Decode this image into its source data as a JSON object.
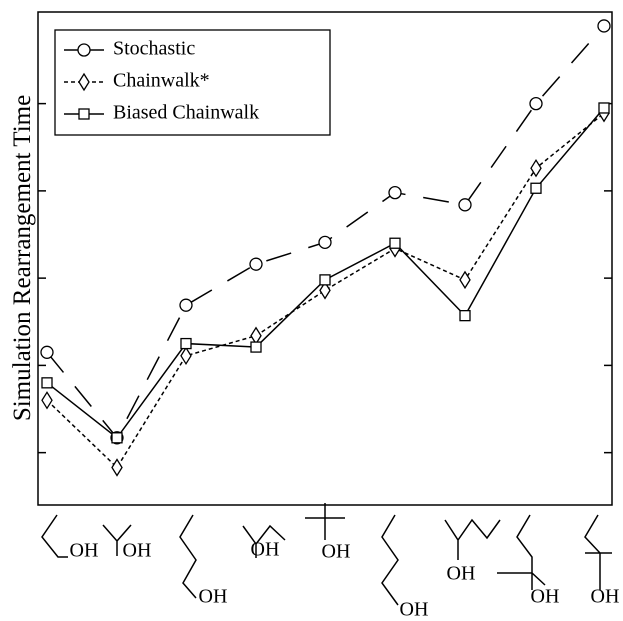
{
  "chart_data": {
    "type": "line",
    "y_label": "Simulation Rearrangement Time",
    "categories": [
      "OH",
      "OH",
      "OH",
      "OH",
      "OH",
      "OH",
      "OH",
      "OH",
      "OH"
    ],
    "series": [
      {
        "name": "Stochastic",
        "color": "#000000",
        "marker": "circle",
        "dash": "long",
        "values": [
          2.15,
          1.17,
          2.69,
          3.16,
          3.41,
          3.98,
          3.84,
          5.0,
          5.89
        ]
      },
      {
        "name": "Chainwalk*",
        "color": "#000000",
        "marker": "diamond",
        "dash": "dotted",
        "values": [
          1.6,
          0.83,
          2.11,
          2.34,
          2.86,
          3.34,
          2.98,
          4.26,
          4.89
        ]
      },
      {
        "name": "Biased Chainwalk",
        "color": "#000000",
        "marker": "square",
        "dash": "solid",
        "values": [
          1.8,
          1.17,
          2.25,
          2.21,
          2.98,
          3.4,
          2.57,
          4.03,
          4.95
        ]
      }
    ],
    "ylim": [
      0.4,
      6.05
    ],
    "yticks": [
      1,
      2,
      3,
      4,
      5
    ],
    "legend": "upper left"
  }
}
